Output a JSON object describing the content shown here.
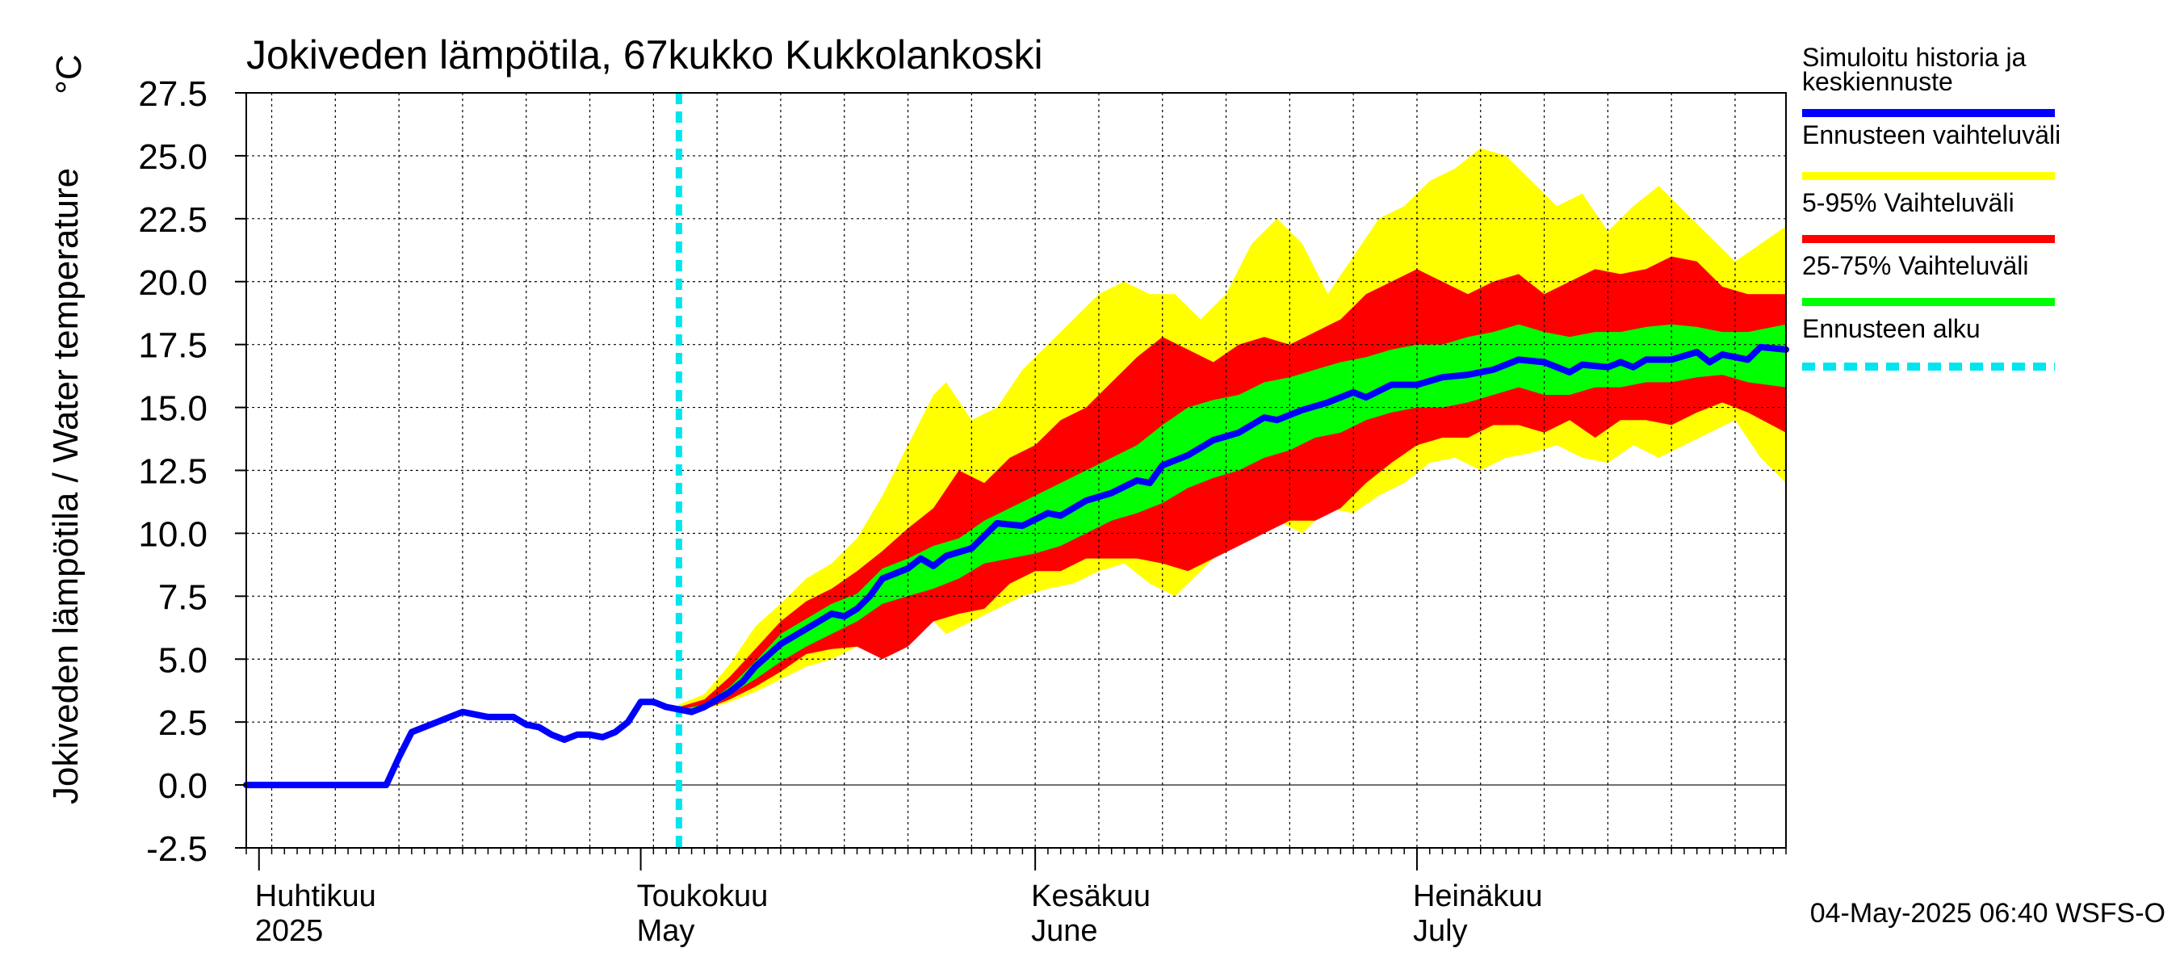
{
  "chart_data": {
    "type": "area",
    "title": "Jokiveden lämpötila, 67kukko Kukkolankoski",
    "ylabel": "Jokiveden lämpötila / Water temperature",
    "yunit": "°C",
    "xlabel": "",
    "ylim": [
      -2.5,
      27.5
    ],
    "yticks": [
      "27.5",
      "25.0",
      "22.5",
      "20.0",
      "17.5",
      "15.0",
      "12.5",
      "10.0",
      "7.5",
      "5.0",
      "2.5",
      "0.0",
      "-2.5"
    ],
    "xlim": [
      "2025-03-31",
      "2025-07-30"
    ],
    "grid": true,
    "month_labels": [
      {
        "fi": "Huhtikuu",
        "en": "2025",
        "date": "2025-04-01"
      },
      {
        "fi": "Toukokuu",
        "en": "May",
        "date": "2025-05-01"
      },
      {
        "fi": "Kesäkuu",
        "en": "June",
        "date": "2025-06-01"
      },
      {
        "fi": "Heinäkuu",
        "en": "July",
        "date": "2025-07-01"
      }
    ],
    "forecast_start": "2025-05-04",
    "series": [
      {
        "name": "Simuloitu historia ja keskiennuste",
        "color": "#0000ff",
        "points": [
          [
            "2025-03-31",
            0.0
          ],
          [
            "2025-04-01",
            0.0
          ],
          [
            "2025-04-05",
            0.0
          ],
          [
            "2025-04-09",
            0.0
          ],
          [
            "2025-04-11",
            0.0
          ],
          [
            "2025-04-12",
            1.1
          ],
          [
            "2025-04-13",
            2.1
          ],
          [
            "2025-04-14",
            2.3
          ],
          [
            "2025-04-15",
            2.5
          ],
          [
            "2025-04-16",
            2.7
          ],
          [
            "2025-04-17",
            2.9
          ],
          [
            "2025-04-18",
            2.8
          ],
          [
            "2025-04-19",
            2.7
          ],
          [
            "2025-04-21",
            2.7
          ],
          [
            "2025-04-22",
            2.4
          ],
          [
            "2025-04-23",
            2.3
          ],
          [
            "2025-04-24",
            2.0
          ],
          [
            "2025-04-25",
            1.8
          ],
          [
            "2025-04-26",
            2.0
          ],
          [
            "2025-04-27",
            2.0
          ],
          [
            "2025-04-28",
            1.9
          ],
          [
            "2025-04-29",
            2.1
          ],
          [
            "2025-04-30",
            2.5
          ],
          [
            "2025-05-01",
            3.3
          ],
          [
            "2025-05-02",
            3.3
          ],
          [
            "2025-05-03",
            3.1
          ],
          [
            "2025-05-04",
            3.0
          ],
          [
            "2025-05-05",
            2.9
          ],
          [
            "2025-05-06",
            3.1
          ],
          [
            "2025-05-07",
            3.4
          ],
          [
            "2025-05-08",
            3.7
          ],
          [
            "2025-05-09",
            4.1
          ],
          [
            "2025-05-10",
            4.7
          ],
          [
            "2025-05-12",
            5.6
          ],
          [
            "2025-05-14",
            6.2
          ],
          [
            "2025-05-16",
            6.8
          ],
          [
            "2025-05-17",
            6.7
          ],
          [
            "2025-05-18",
            7.0
          ],
          [
            "2025-05-19",
            7.5
          ],
          [
            "2025-05-20",
            8.2
          ],
          [
            "2025-05-22",
            8.6
          ],
          [
            "2025-05-23",
            9.0
          ],
          [
            "2025-05-24",
            8.7
          ],
          [
            "2025-05-25",
            9.1
          ],
          [
            "2025-05-27",
            9.4
          ],
          [
            "2025-05-29",
            10.4
          ],
          [
            "2025-05-31",
            10.3
          ],
          [
            "2025-06-02",
            10.8
          ],
          [
            "2025-06-03",
            10.7
          ],
          [
            "2025-06-05",
            11.3
          ],
          [
            "2025-06-07",
            11.6
          ],
          [
            "2025-06-09",
            12.1
          ],
          [
            "2025-06-10",
            12.0
          ],
          [
            "2025-06-11",
            12.7
          ],
          [
            "2025-06-13",
            13.1
          ],
          [
            "2025-06-15",
            13.7
          ],
          [
            "2025-06-17",
            14.0
          ],
          [
            "2025-06-19",
            14.6
          ],
          [
            "2025-06-20",
            14.5
          ],
          [
            "2025-06-22",
            14.9
          ],
          [
            "2025-06-24",
            15.2
          ],
          [
            "2025-06-26",
            15.6
          ],
          [
            "2025-06-27",
            15.4
          ],
          [
            "2025-06-29",
            15.9
          ],
          [
            "2025-07-01",
            15.9
          ],
          [
            "2025-07-03",
            16.2
          ],
          [
            "2025-07-05",
            16.3
          ],
          [
            "2025-07-07",
            16.5
          ],
          [
            "2025-07-09",
            16.9
          ],
          [
            "2025-07-11",
            16.8
          ],
          [
            "2025-07-13",
            16.4
          ],
          [
            "2025-07-14",
            16.7
          ],
          [
            "2025-07-16",
            16.6
          ],
          [
            "2025-07-17",
            16.8
          ],
          [
            "2025-07-18",
            16.6
          ],
          [
            "2025-07-19",
            16.9
          ],
          [
            "2025-07-21",
            16.9
          ],
          [
            "2025-07-23",
            17.2
          ],
          [
            "2025-07-24",
            16.8
          ],
          [
            "2025-07-25",
            17.1
          ],
          [
            "2025-07-27",
            16.9
          ],
          [
            "2025-07-28",
            17.4
          ],
          [
            "2025-07-30",
            17.3
          ]
        ]
      }
    ],
    "bands": [
      {
        "name": "Ennusteen vaihteluväli",
        "color": "#ffff00",
        "points": [
          [
            "2025-05-04",
            2.9,
            3.2
          ],
          [
            "2025-05-06",
            3.0,
            3.6
          ],
          [
            "2025-05-08",
            3.3,
            4.8
          ],
          [
            "2025-05-10",
            3.7,
            6.3
          ],
          [
            "2025-05-12",
            4.2,
            7.2
          ],
          [
            "2025-05-14",
            4.7,
            8.2
          ],
          [
            "2025-05-16",
            5.0,
            8.8
          ],
          [
            "2025-05-18",
            5.5,
            9.8
          ],
          [
            "2025-05-20",
            5.5,
            11.5
          ],
          [
            "2025-05-22",
            6.0,
            13.5
          ],
          [
            "2025-05-24",
            6.5,
            15.5
          ],
          [
            "2025-05-25",
            6.0,
            16.0
          ],
          [
            "2025-05-27",
            6.5,
            14.5
          ],
          [
            "2025-05-29",
            7.0,
            15.0
          ],
          [
            "2025-05-31",
            7.5,
            16.5
          ],
          [
            "2025-06-02",
            7.8,
            17.5
          ],
          [
            "2025-06-04",
            8.0,
            18.5
          ],
          [
            "2025-06-06",
            8.5,
            19.5
          ],
          [
            "2025-06-08",
            8.8,
            20.0
          ],
          [
            "2025-06-10",
            8.0,
            19.5
          ],
          [
            "2025-06-12",
            7.5,
            19.5
          ],
          [
            "2025-06-14",
            8.5,
            18.5
          ],
          [
            "2025-06-16",
            9.5,
            19.5
          ],
          [
            "2025-06-18",
            10.0,
            21.5
          ],
          [
            "2025-06-20",
            10.5,
            22.5
          ],
          [
            "2025-06-22",
            10.0,
            21.5
          ],
          [
            "2025-06-24",
            11.0,
            19.5
          ],
          [
            "2025-06-26",
            10.8,
            21.0
          ],
          [
            "2025-06-28",
            11.5,
            22.5
          ],
          [
            "2025-06-30",
            12.0,
            23.0
          ],
          [
            "2025-07-02",
            12.8,
            24.0
          ],
          [
            "2025-07-04",
            13.0,
            24.5
          ],
          [
            "2025-07-06",
            12.5,
            25.3
          ],
          [
            "2025-07-08",
            13.0,
            25.0
          ],
          [
            "2025-07-10",
            13.2,
            24.0
          ],
          [
            "2025-07-12",
            13.5,
            23.0
          ],
          [
            "2025-07-14",
            13.0,
            23.5
          ],
          [
            "2025-07-16",
            12.8,
            22.0
          ],
          [
            "2025-07-18",
            13.5,
            23.0
          ],
          [
            "2025-07-20",
            13.0,
            23.8
          ],
          [
            "2025-07-22",
            13.5,
            22.8
          ],
          [
            "2025-07-24",
            14.0,
            21.8
          ],
          [
            "2025-07-26",
            14.5,
            20.8
          ],
          [
            "2025-07-28",
            13.0,
            21.5
          ],
          [
            "2025-07-30",
            12.0,
            22.2
          ]
        ]
      },
      {
        "name": "5-95% Vaihteluväli",
        "color": "#ff0000",
        "points": [
          [
            "2025-05-04",
            2.9,
            3.1
          ],
          [
            "2025-05-06",
            3.0,
            3.4
          ],
          [
            "2025-05-08",
            3.4,
            4.3
          ],
          [
            "2025-05-10",
            3.9,
            5.4
          ],
          [
            "2025-05-12",
            4.5,
            6.5
          ],
          [
            "2025-05-14",
            5.2,
            7.3
          ],
          [
            "2025-05-16",
            5.4,
            7.8
          ],
          [
            "2025-05-18",
            5.5,
            8.5
          ],
          [
            "2025-05-20",
            5.0,
            9.3
          ],
          [
            "2025-05-22",
            5.5,
            10.2
          ],
          [
            "2025-05-24",
            6.5,
            11.0
          ],
          [
            "2025-05-26",
            6.8,
            12.5
          ],
          [
            "2025-05-28",
            7.0,
            12.0
          ],
          [
            "2025-05-30",
            8.0,
            13.0
          ],
          [
            "2025-06-01",
            8.5,
            13.5
          ],
          [
            "2025-06-03",
            8.5,
            14.5
          ],
          [
            "2025-06-05",
            9.0,
            15.0
          ],
          [
            "2025-06-07",
            9.0,
            16.0
          ],
          [
            "2025-06-09",
            9.0,
            17.0
          ],
          [
            "2025-06-11",
            8.8,
            17.8
          ],
          [
            "2025-06-13",
            8.5,
            17.3
          ],
          [
            "2025-06-15",
            9.0,
            16.8
          ],
          [
            "2025-06-17",
            9.5,
            17.5
          ],
          [
            "2025-06-19",
            10.0,
            17.8
          ],
          [
            "2025-06-21",
            10.5,
            17.5
          ],
          [
            "2025-06-23",
            10.5,
            18.0
          ],
          [
            "2025-06-25",
            11.0,
            18.5
          ],
          [
            "2025-06-27",
            12.0,
            19.5
          ],
          [
            "2025-06-29",
            12.8,
            20.0
          ],
          [
            "2025-07-01",
            13.5,
            20.5
          ],
          [
            "2025-07-03",
            13.8,
            20.0
          ],
          [
            "2025-07-05",
            13.8,
            19.5
          ],
          [
            "2025-07-07",
            14.3,
            20.0
          ],
          [
            "2025-07-09",
            14.3,
            20.3
          ],
          [
            "2025-07-11",
            14.0,
            19.5
          ],
          [
            "2025-07-13",
            14.5,
            20.0
          ],
          [
            "2025-07-15",
            13.8,
            20.5
          ],
          [
            "2025-07-17",
            14.5,
            20.3
          ],
          [
            "2025-07-19",
            14.5,
            20.5
          ],
          [
            "2025-07-21",
            14.3,
            21.0
          ],
          [
            "2025-07-23",
            14.8,
            20.8
          ],
          [
            "2025-07-25",
            15.2,
            19.8
          ],
          [
            "2025-07-27",
            14.8,
            19.5
          ],
          [
            "2025-07-30",
            14.0,
            19.5
          ]
        ]
      },
      {
        "name": "25-75% Vaihteluväli",
        "color": "#00ff00",
        "points": [
          [
            "2025-05-04",
            2.9,
            3.0
          ],
          [
            "2025-05-06",
            3.0,
            3.2
          ],
          [
            "2025-05-08",
            3.6,
            3.9
          ],
          [
            "2025-05-10",
            4.2,
            4.9
          ],
          [
            "2025-05-12",
            4.9,
            6.0
          ],
          [
            "2025-05-14",
            5.5,
            6.6
          ],
          [
            "2025-05-16",
            6.0,
            7.2
          ],
          [
            "2025-05-18",
            6.5,
            7.6
          ],
          [
            "2025-05-20",
            7.2,
            8.6
          ],
          [
            "2025-05-22",
            7.5,
            9.0
          ],
          [
            "2025-05-24",
            7.8,
            9.5
          ],
          [
            "2025-05-26",
            8.2,
            9.8
          ],
          [
            "2025-05-28",
            8.8,
            10.5
          ],
          [
            "2025-05-30",
            9.0,
            11.0
          ],
          [
            "2025-06-01",
            9.2,
            11.5
          ],
          [
            "2025-06-03",
            9.5,
            12.0
          ],
          [
            "2025-06-05",
            10.0,
            12.5
          ],
          [
            "2025-06-07",
            10.5,
            13.0
          ],
          [
            "2025-06-09",
            10.8,
            13.5
          ],
          [
            "2025-06-11",
            11.2,
            14.3
          ],
          [
            "2025-06-13",
            11.8,
            15.0
          ],
          [
            "2025-06-15",
            12.2,
            15.3
          ],
          [
            "2025-06-17",
            12.5,
            15.5
          ],
          [
            "2025-06-19",
            13.0,
            16.0
          ],
          [
            "2025-06-21",
            13.3,
            16.2
          ],
          [
            "2025-06-23",
            13.8,
            16.5
          ],
          [
            "2025-06-25",
            14.0,
            16.8
          ],
          [
            "2025-06-27",
            14.5,
            17.0
          ],
          [
            "2025-06-29",
            14.8,
            17.3
          ],
          [
            "2025-07-01",
            15.0,
            17.5
          ],
          [
            "2025-07-03",
            15.0,
            17.5
          ],
          [
            "2025-07-05",
            15.2,
            17.8
          ],
          [
            "2025-07-07",
            15.5,
            18.0
          ],
          [
            "2025-07-09",
            15.8,
            18.3
          ],
          [
            "2025-07-11",
            15.5,
            18.0
          ],
          [
            "2025-07-13",
            15.5,
            17.8
          ],
          [
            "2025-07-15",
            15.8,
            18.0
          ],
          [
            "2025-07-17",
            15.8,
            18.0
          ],
          [
            "2025-07-19",
            16.0,
            18.2
          ],
          [
            "2025-07-21",
            16.0,
            18.3
          ],
          [
            "2025-07-23",
            16.2,
            18.2
          ],
          [
            "2025-07-25",
            16.3,
            18.0
          ],
          [
            "2025-07-27",
            16.0,
            18.0
          ],
          [
            "2025-07-30",
            15.8,
            18.3
          ]
        ]
      }
    ],
    "legend": {
      "placement": "right",
      "entries": [
        {
          "lines": [
            "Simuloitu historia ja",
            "keskiennuste"
          ],
          "color": "#0000ff",
          "style": "solid"
        },
        {
          "lines": [
            "Ennusteen vaihteluväli"
          ],
          "color": "#ffff00",
          "style": "solid"
        },
        {
          "lines": [
            "5-95% Vaihteluväli"
          ],
          "color": "#ff0000",
          "style": "solid"
        },
        {
          "lines": [
            "25-75% Vaihteluväli"
          ],
          "color": "#00ff00",
          "style": "solid"
        },
        {
          "lines": [
            "Ennusteen alku"
          ],
          "color": "#00e5ee",
          "style": "dashed"
        }
      ]
    },
    "footer": "04-May-2025 06:40 WSFS-O"
  }
}
